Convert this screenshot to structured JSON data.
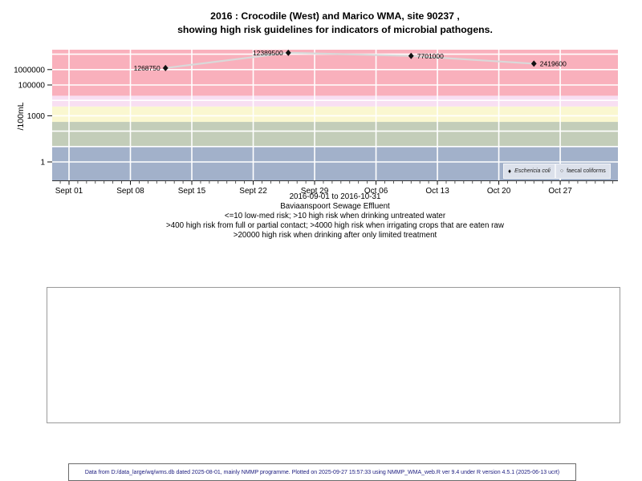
{
  "title": {
    "line1": "2016 : Crocodile (West) and Marico WMA, site 90237 ,",
    "line2": "showing high risk guidelines for indicators of microbial pathogens."
  },
  "chart_data": {
    "type": "line",
    "y_axis": {
      "label": "/100mL",
      "scale": "log10",
      "ticks": [
        {
          "label": "1000000",
          "value": 1000000
        },
        {
          "label": "100000",
          "value": 100000
        },
        {
          "label": "1000",
          "value": 1000
        },
        {
          "label": "1",
          "value": 1
        }
      ]
    },
    "x_axis": {
      "start": "2016-09-01",
      "end": "2016-10-31",
      "ticks": [
        {
          "label": "Sept 01",
          "day": 0
        },
        {
          "label": "Sept 08",
          "day": 7
        },
        {
          "label": "Sept 15",
          "day": 14
        },
        {
          "label": "Sept 22",
          "day": 21
        },
        {
          "label": "Sept 29",
          "day": 28
        },
        {
          "label": "Oct 06",
          "day": 35
        },
        {
          "label": "Oct 13",
          "day": 42
        },
        {
          "label": "Oct 20",
          "day": 49
        },
        {
          "label": "Oct 27",
          "day": 56
        }
      ]
    },
    "series": [
      {
        "name": "Eschericia coli",
        "marker": "diamond",
        "marker_color": "#111111",
        "line_color": "#d9d9d9",
        "points": [
          {
            "date": "2016-09-12",
            "value": 1268750,
            "label": "1268750",
            "label_side": "left"
          },
          {
            "date": "2016-09-26",
            "value": 12389500,
            "label": "12389500",
            "label_side": "left"
          },
          {
            "date": "2016-10-10",
            "value": 7701000,
            "label": "7701000",
            "label_side": "right"
          },
          {
            "date": "2016-10-24",
            "value": 2419600,
            "label": "2419600",
            "label_side": "right"
          }
        ]
      }
    ],
    "legend": {
      "position": "bottom-right",
      "items": [
        {
          "symbol": "♦",
          "label": "Eschericia coli",
          "italic": true
        },
        {
          "symbol": "○",
          "label": "faecal coliforms",
          "italic": false
        }
      ]
    },
    "guideline_bands": [
      {
        "from": null,
        "to": 10,
        "color": "#a2b1ca"
      },
      {
        "from": 10,
        "to": 400,
        "color": "#c3cdb9"
      },
      {
        "from": 400,
        "to": 4000,
        "color": "#faf7d0"
      },
      {
        "from": 4000,
        "to": 20000,
        "color": "#f8dff2"
      },
      {
        "from": 20000,
        "to": null,
        "color": "#f9b0bc"
      }
    ],
    "grid": {
      "color": "#ffffff",
      "horizontal_every_decade": true,
      "vertical_weekly": true
    }
  },
  "caption": {
    "date_range": "2016-09-01 to 2016-10-31",
    "site": "Baviaanspoort Sewage Effluent",
    "guidelines": [
      "<=10 low-med risk; >10 high risk when drinking untreated water",
      ">400 high risk from full or partial contact; >4000 high risk when irrigating crops that are eaten raw",
      ">20000 high risk when drinking after only limited treatment"
    ]
  },
  "footer": {
    "text": "Data from D:/data_large/wq/wms.db dated 2025-08-01, mainly NMMP programme. Plotted on 2025-09-27 15:57:33 using NMMP_WMA_web.R ver 9.4 under R version 4.5.1 (2025-06-13 ucrt)"
  }
}
